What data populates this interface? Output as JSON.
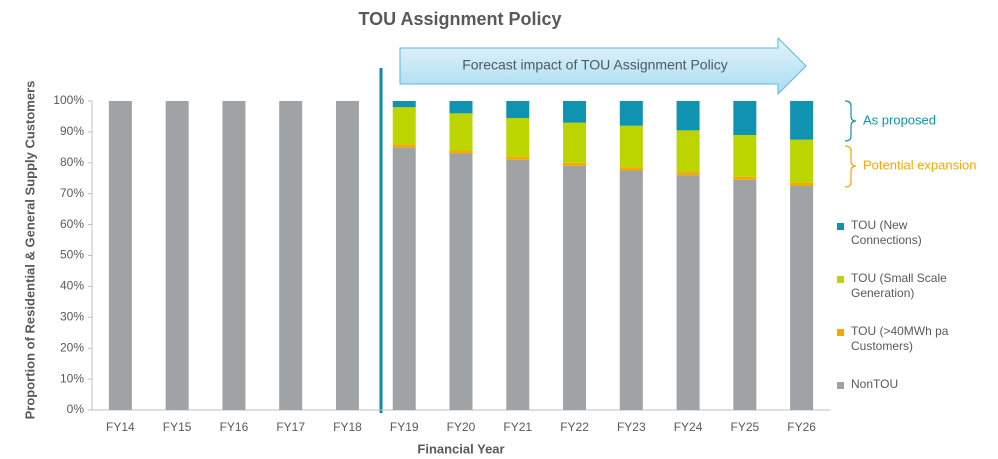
{
  "chart_data": {
    "type": "stacked_bar",
    "title": "TOU Assignment Policy",
    "x_label": "Financial Year",
    "y_label": "Proportion of Residential & General Supply Customers",
    "annotations": [
      "Forecast impact of TOU Assignment Policy",
      "As proposed",
      "Potential expansion"
    ],
    "categories": [
      "FY14",
      "FY15",
      "FY16",
      "FY17",
      "FY18",
      "FY19",
      "FY20",
      "FY21",
      "FY22",
      "FY23",
      "FY24",
      "FY25",
      "FY26"
    ],
    "series": [
      {
        "name": "NonTOU",
        "color": "#a0a3a6",
        "values": [
          100,
          100,
          100,
          100,
          100,
          85,
          83,
          81,
          79,
          77.5,
          76,
          74.5,
          72.5
        ]
      },
      {
        "name": "TOU (>40MWh pa Customers)",
        "color": "#f5a800",
        "values": [
          0,
          0,
          0,
          0,
          0,
          1,
          1,
          1,
          1,
          1,
          1,
          1,
          1
        ]
      },
      {
        "name": "TOU (Small Scale Generation)",
        "color": "#bcd400",
        "values": [
          0,
          0,
          0,
          0,
          0,
          12,
          12,
          12.5,
          13,
          13.5,
          13.5,
          13.5,
          14
        ]
      },
      {
        "name": "TOU (New Connections)",
        "color": "#0f93b0",
        "values": [
          0,
          0,
          0,
          0,
          0,
          2,
          4,
          5.5,
          7,
          8,
          9.5,
          11,
          12.5
        ]
      }
    ],
    "ylim": [
      0,
      100
    ],
    "yticks": [
      {
        "value": 0,
        "label": "0%"
      },
      {
        "value": 10,
        "label": "10%"
      },
      {
        "value": 20,
        "label": "20%"
      },
      {
        "value": 30,
        "label": "30%"
      },
      {
        "value": 40,
        "label": "40%"
      },
      {
        "value": 50,
        "label": "50%"
      },
      {
        "value": 60,
        "label": "60%"
      },
      {
        "value": 70,
        "label": "70%"
      },
      {
        "value": 80,
        "label": "80%"
      },
      {
        "value": 90,
        "label": "90%"
      },
      {
        "value": 100,
        "label": "100%"
      }
    ],
    "grid": false,
    "legend": "right"
  }
}
